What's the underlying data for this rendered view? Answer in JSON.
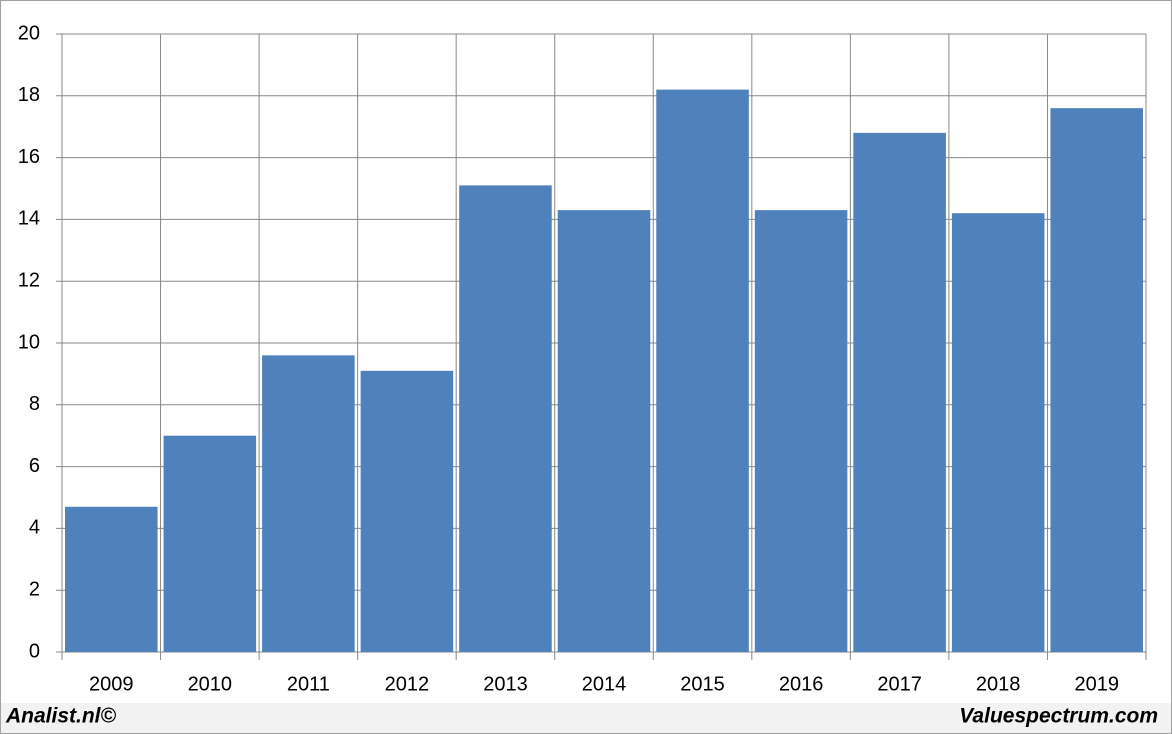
{
  "chart_data": {
    "type": "bar",
    "categories": [
      "2009",
      "2010",
      "2011",
      "2012",
      "2013",
      "2014",
      "2015",
      "2016",
      "2017",
      "2018",
      "2019"
    ],
    "values": [
      4.7,
      7.0,
      9.6,
      9.1,
      15.1,
      14.3,
      18.2,
      14.3,
      16.8,
      14.2,
      17.6
    ],
    "color": "#4f81bd",
    "ylim": [
      0,
      20
    ],
    "yticks": [
      0,
      2,
      4,
      6,
      8,
      10,
      12,
      14,
      16,
      18,
      20
    ],
    "grid": true,
    "annotations": [
      "Analist.nl©",
      "Valuespectrum.com"
    ]
  }
}
